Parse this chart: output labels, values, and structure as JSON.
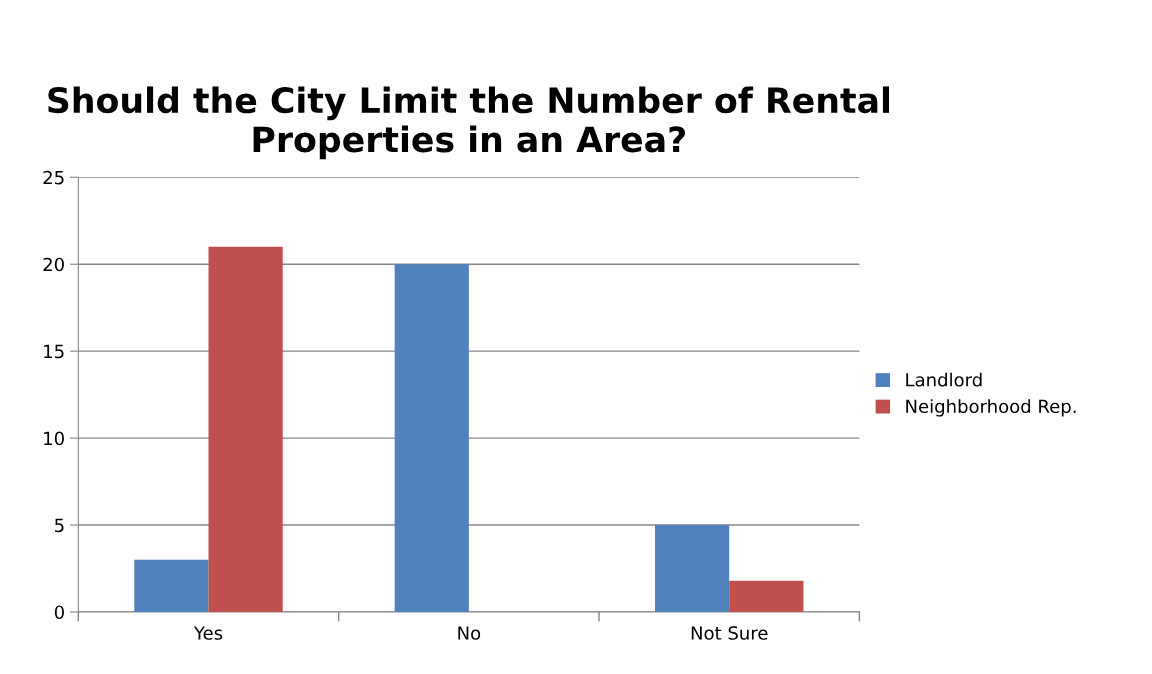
{
  "chart_data": {
    "type": "bar",
    "title": "Should the City Limit the Number of Rental Properties in an Area?",
    "categories": [
      "Yes",
      "No",
      "Not Sure"
    ],
    "series": [
      {
        "name": "Landlord",
        "color": "#4f81bd",
        "values": [
          3,
          20,
          5
        ]
      },
      {
        "name": "Neighborhood Rep.",
        "color": "#c0504d",
        "values": [
          21,
          0,
          1.8
        ]
      }
    ],
    "ylim": [
      0,
      25
    ],
    "yticks": [
      0,
      5,
      10,
      15,
      20,
      25
    ],
    "grid": "y",
    "legend": "right"
  }
}
